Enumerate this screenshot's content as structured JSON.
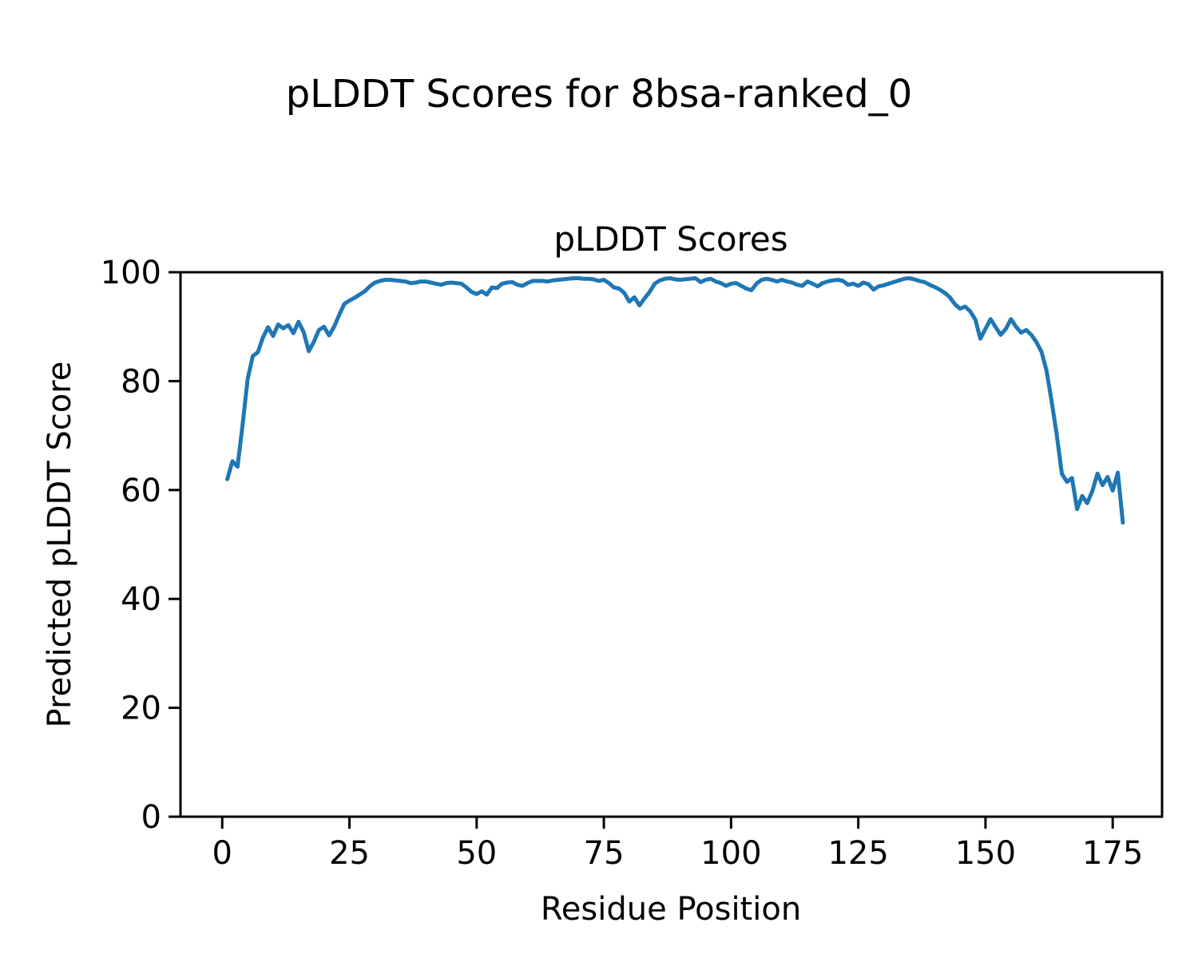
{
  "figure": {
    "suptitle": "pLDDT Scores for 8bsa-ranked_0",
    "axes_title": "pLDDT Scores",
    "xlabel": "Residue Position",
    "ylabel": "Predicted pLDDT Score"
  },
  "chart_data": {
    "type": "line",
    "title": "pLDDT Scores",
    "suptitle": "pLDDT Scores for 8bsa-ranked_0",
    "xlabel": "Residue Position",
    "ylabel": "Predicted pLDDT Score",
    "series_name": "pLDDT",
    "line_color": "#1f77b4",
    "line_width": 5,
    "background_color": "#ffffff",
    "spine_color": "#000000",
    "grid": false,
    "legend": "none",
    "xlim": [
      -8.2,
      184.7
    ],
    "ylim": [
      0,
      100
    ],
    "xticks": [
      0,
      25,
      50,
      75,
      100,
      125,
      150,
      175
    ],
    "yticks": [
      0,
      20,
      40,
      60,
      80,
      100
    ],
    "x_start": 1,
    "x_step": 1,
    "n_points": 177,
    "values": [
      62.0,
      65.3,
      64.3,
      71.9,
      80.4,
      84.6,
      85.3,
      88.0,
      89.9,
      88.3,
      90.4,
      89.7,
      90.3,
      88.8,
      90.9,
      89.0,
      85.5,
      87.2,
      89.4,
      90.0,
      88.4,
      90.0,
      92.2,
      94.2,
      94.8,
      95.3,
      95.9,
      96.5,
      97.4,
      98.1,
      98.4,
      98.6,
      98.6,
      98.5,
      98.4,
      98.3,
      98.0,
      98.1,
      98.3,
      98.3,
      98.1,
      97.9,
      97.7,
      98.0,
      98.1,
      98.0,
      97.9,
      97.2,
      96.4,
      96.0,
      96.5,
      95.9,
      97.2,
      97.1,
      97.9,
      98.1,
      98.2,
      97.7,
      97.5,
      98.0,
      98.4,
      98.4,
      98.4,
      98.3,
      98.5,
      98.6,
      98.7,
      98.8,
      98.9,
      98.9,
      98.8,
      98.8,
      98.7,
      98.4,
      98.6,
      98.0,
      97.2,
      97.0,
      96.2,
      94.6,
      95.4,
      93.9,
      95.2,
      96.4,
      97.9,
      98.5,
      98.8,
      98.9,
      98.7,
      98.6,
      98.7,
      98.8,
      98.9,
      98.2,
      98.6,
      98.8,
      98.3,
      98.0,
      97.5,
      97.9,
      98.0,
      97.5,
      97.0,
      96.7,
      97.9,
      98.6,
      98.8,
      98.6,
      98.3,
      98.6,
      98.3,
      98.1,
      97.7,
      97.5,
      98.3,
      97.9,
      97.4,
      98.0,
      98.3,
      98.5,
      98.6,
      98.4,
      97.7,
      97.9,
      97.5,
      98.1,
      97.8,
      96.8,
      97.4,
      97.6,
      97.9,
      98.2,
      98.5,
      98.8,
      98.9,
      98.7,
      98.4,
      98.2,
      97.7,
      97.3,
      96.8,
      96.2,
      95.4,
      94.1,
      93.3,
      93.7,
      92.8,
      91.3,
      87.8,
      89.6,
      91.4,
      89.9,
      88.5,
      89.6,
      91.4,
      90.0,
      88.9,
      89.4,
      88.5,
      87.2,
      85.4,
      81.9,
      76.3,
      70.2,
      63.0,
      61.5,
      62.2,
      56.5,
      58.9,
      57.6,
      59.8,
      63.0,
      60.9,
      62.4,
      59.9,
      63.2,
      54.0
    ]
  }
}
